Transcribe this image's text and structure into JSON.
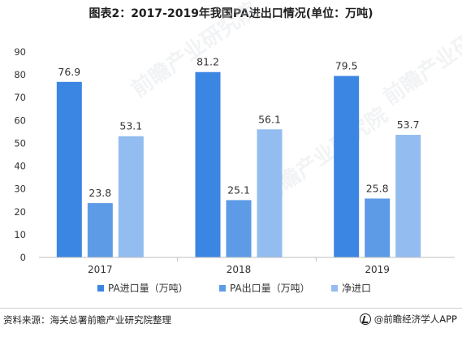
{
  "title": "图表2：2017-2019年我国PA进出口情况(单位：万吨)",
  "source": "资料来源：海关总署前瞻产业研究院整理",
  "brand": "@前瞻经济学人APP",
  "watermark": "前瞻产业研究院",
  "colors": {
    "import": "#3c86e3",
    "export": "#5d9be6",
    "net": "#93bdf0",
    "axis": "#bfbfbf",
    "text": "#333333"
  },
  "chart_data": {
    "type": "bar",
    "title": "图表2：2017-2019年我国PA进出口情况(单位：万吨)",
    "categories": [
      "2017",
      "2018",
      "2019"
    ],
    "ylim": [
      0,
      90
    ],
    "yticks": [
      0,
      10,
      20,
      30,
      40,
      50,
      60,
      70,
      80,
      90
    ],
    "series": [
      {
        "name": "PA进口量（万吨）",
        "values": [
          76.9,
          81.2,
          79.5
        ],
        "labels": [
          "76.9",
          "81.2",
          "79.5"
        ]
      },
      {
        "name": "PA出口量（万吨）",
        "values": [
          23.8,
          25.1,
          25.8
        ],
        "labels": [
          "23.8",
          "25.1",
          "25.8"
        ]
      },
      {
        "name": "净进口",
        "values": [
          53.1,
          56.1,
          53.7
        ],
        "labels": [
          "53.1",
          "56.1",
          "53.7"
        ]
      }
    ],
    "legend_position": "bottom"
  }
}
